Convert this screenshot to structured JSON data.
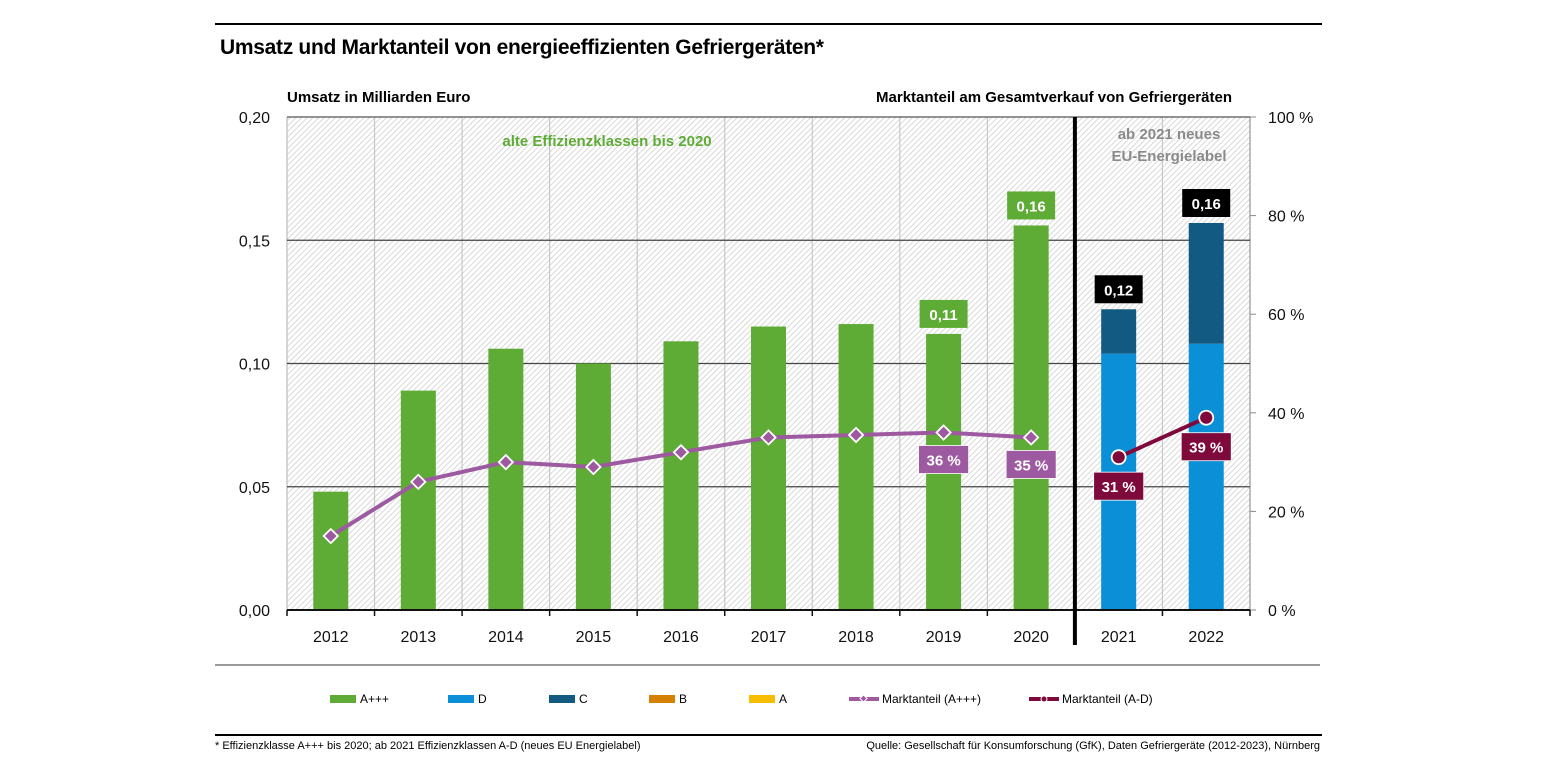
{
  "title": "Umsatz und Marktanteil von energieeffizienten Gefriergeräten*",
  "colors": {
    "a_plus3": "#5eab35",
    "d": "#0b8fd6",
    "c": "#135a82",
    "b": "#d58000",
    "a": "#f8bc00",
    "share_a_plus3": "#9d5aa0",
    "share_a_d": "#7e0a3b",
    "label_total_new": "#000000"
  },
  "legend": [
    {
      "label": "A+++",
      "key": "a_plus3",
      "kind": "bar"
    },
    {
      "label": "D",
      "key": "d",
      "kind": "bar"
    },
    {
      "label": "C",
      "key": "c",
      "kind": "bar"
    },
    {
      "label": "B",
      "key": "b",
      "kind": "bar"
    },
    {
      "label": "A",
      "key": "a",
      "kind": "bar"
    },
    {
      "label": "Marktanteil (A+++)",
      "key": "share_a_plus3",
      "kind": "line-diamond"
    },
    {
      "label": "Marktanteil (A-D)",
      "key": "share_a_d",
      "kind": "line-circle"
    }
  ],
  "footnote": "* Effizienzklasse A+++ bis 2020; ab 2021 Effizienzklassen A-D (neues EU Energielabel)",
  "source": "Quelle: Gesellschaft für Konsumforschung (GfK), Daten Gefriergeräte (2012-2023), Nürnberg",
  "chart_data": {
    "type": "bar",
    "title": "Umsatz und Marktanteil von energieeffizienten Gefriergeräten*",
    "ylabel": "Umsatz in Milliarden Euro",
    "y2label": "Marktanteil am Gesamtverkauf von Gefriergeräten",
    "categories": [
      "2012",
      "2013",
      "2014",
      "2015",
      "2016",
      "2017",
      "2018",
      "2019",
      "2020",
      "2021",
      "2022"
    ],
    "ylim": [
      0,
      0.2
    ],
    "yticks": [
      "0,00",
      "0,05",
      "0,10",
      "0,15",
      "0,20"
    ],
    "y2lim": [
      0,
      100
    ],
    "y2ticks": [
      "0 %",
      "20 %",
      "40 %",
      "60 %",
      "80 %",
      "100 %"
    ],
    "grid": true,
    "annotations": {
      "old_classes": "alte Effizienzklassen bis 2020",
      "new_label_line1": "ab 2021 neues",
      "new_label_line2": "EU-Energielabel",
      "divider_after": "2020"
    },
    "series": [
      {
        "name": "A+++",
        "type": "bar",
        "stack": "s",
        "values": [
          0.048,
          0.089,
          0.106,
          0.1,
          0.109,
          0.115,
          0.116,
          0.112,
          0.156,
          null,
          null
        ]
      },
      {
        "name": "D",
        "type": "bar",
        "stack": "s",
        "values": [
          null,
          null,
          null,
          null,
          null,
          null,
          null,
          null,
          null,
          0.104,
          0.108
        ]
      },
      {
        "name": "C",
        "type": "bar",
        "stack": "s",
        "values": [
          null,
          null,
          null,
          null,
          null,
          null,
          null,
          null,
          null,
          0.018,
          0.049
        ]
      },
      {
        "name": "B",
        "type": "bar",
        "stack": "s",
        "values": [
          null,
          null,
          null,
          null,
          null,
          null,
          null,
          null,
          null,
          0,
          0
        ]
      },
      {
        "name": "A",
        "type": "bar",
        "stack": "s",
        "values": [
          null,
          null,
          null,
          null,
          null,
          null,
          null,
          null,
          null,
          0,
          0
        ]
      },
      {
        "name": "Marktanteil (A+++)",
        "type": "line",
        "axis": "y2",
        "values": [
          15,
          26,
          30,
          29,
          32,
          35,
          35.5,
          36,
          35,
          null,
          null
        ]
      },
      {
        "name": "Marktanteil (A-D)",
        "type": "line",
        "axis": "y2",
        "values": [
          null,
          null,
          null,
          null,
          null,
          null,
          null,
          null,
          null,
          31,
          39
        ]
      }
    ],
    "total_labels": [
      {
        "category": "2019",
        "text": "0,11",
        "style": "green"
      },
      {
        "category": "2020",
        "text": "0,16",
        "style": "green"
      },
      {
        "category": "2021",
        "text": "0,12",
        "style": "black"
      },
      {
        "category": "2022",
        "text": "0,16",
        "style": "black"
      }
    ],
    "share_labels": [
      {
        "category": "2019",
        "text": "36 %",
        "series": "Marktanteil (A+++)"
      },
      {
        "category": "2020",
        "text": "35 %",
        "series": "Marktanteil (A+++)"
      },
      {
        "category": "2021",
        "text": "31  %",
        "series": "Marktanteil (A-D)"
      },
      {
        "category": "2022",
        "text": "39  %",
        "series": "Marktanteil (A-D)"
      }
    ]
  }
}
